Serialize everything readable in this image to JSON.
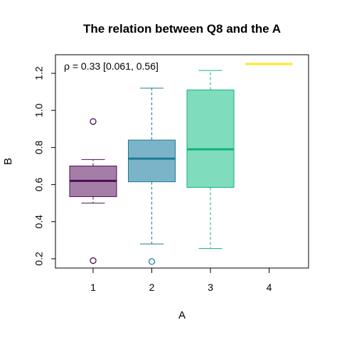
{
  "chart_data": {
    "type": "box",
    "title": "The relation between Q8 and the A",
    "xlabel": "A",
    "ylabel": "B",
    "annotation": "ρ = 0.33 [0.061, 0.56]",
    "ylim": [
      0.15,
      1.3
    ],
    "yticks": [
      0.2,
      0.4,
      0.6,
      0.8,
      1.0,
      1.2
    ],
    "ytick_labels": [
      "0.2",
      "0.4",
      "0.6",
      "0.8",
      "1.0",
      "1.2"
    ],
    "categories": [
      "1",
      "2",
      "3",
      "4"
    ],
    "boxes": [
      {
        "category": "1",
        "whisker_low": 0.5,
        "q1": 0.535,
        "median": 0.62,
        "q3": 0.7,
        "whisker_high": 0.735,
        "outliers": [
          0.94,
          0.19
        ],
        "fill": "#A57EA8",
        "stroke": "#4B0F54"
      },
      {
        "category": "2",
        "whisker_low": 0.28,
        "q1": 0.615,
        "median": 0.74,
        "q3": 0.84,
        "whisker_high": 1.12,
        "outliers": [
          0.185
        ],
        "fill": "#7BB4C8",
        "stroke": "#1F7A93"
      },
      {
        "category": "3",
        "whisker_low": 0.255,
        "q1": 0.585,
        "median": 0.79,
        "q3": 1.11,
        "whisker_high": 1.215,
        "outliers": [],
        "fill": "#7FDDBD",
        "stroke": "#12B07A"
      },
      {
        "category": "4",
        "whisker_low": 1.25,
        "q1": 1.25,
        "median": 1.25,
        "q3": 1.25,
        "whisker_high": 1.25,
        "outliers": [],
        "fill": "#FDE725",
        "stroke": "#FDE725"
      }
    ],
    "grid": false,
    "legend": "none"
  }
}
